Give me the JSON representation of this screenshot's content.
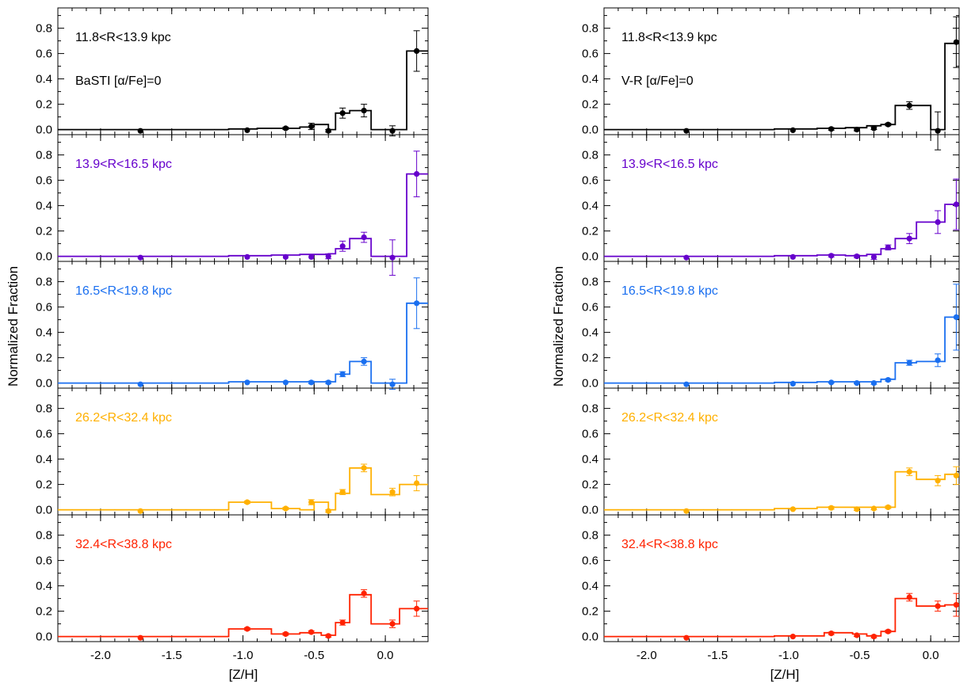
{
  "colors": [
    "#000000",
    "#6600cc",
    "#1a6ff0",
    "#ffb000",
    "#ff2200"
  ],
  "chart_data": [
    {
      "type": "line",
      "title": "",
      "xlabel": "[Z/H]",
      "ylabel": "Normalized Fraction",
      "xlim": [
        -2.3,
        0.3
      ],
      "ylim": [
        -0.04,
        0.96
      ],
      "x_ticks": [
        "-2.0",
        "-1.5",
        "-1.0",
        "-0.5",
        "0.0"
      ],
      "y_ticks": [
        "0.0",
        "0.2",
        "0.4",
        "0.6",
        "0.8"
      ],
      "model_label": "BaSTI [α/Fe]=0",
      "panels": [
        {
          "label": "11.8<R<13.9 kpc",
          "color": "#000000",
          "step": {
            "edges": [
              -2.3,
              -1.1,
              -0.9,
              -0.6,
              -0.5,
              -0.4,
              -0.35,
              -0.25,
              -0.1,
              0.0,
              0.1,
              0.15,
              0.3
            ],
            "values": [
              0.0,
              0.005,
              0.01,
              0.02,
              0.04,
              0.0,
              0.13,
              0.15,
              0.0,
              0.0,
              0.0,
              0.62
            ]
          },
          "points": {
            "x": [
              -1.72,
              -0.97,
              -0.7,
              -0.52,
              -0.4,
              -0.3,
              -0.15,
              0.05,
              0.22
            ],
            "y": [
              -0.01,
              -0.005,
              0.01,
              0.025,
              -0.01,
              0.13,
              0.15,
              -0.01,
              0.62
            ],
            "err": [
              0,
              0,
              0.01,
              0.025,
              0.01,
              0.04,
              0.05,
              0.04,
              0.16
            ]
          }
        },
        {
          "label": "13.9<R<16.5 kpc",
          "color": "#6600cc",
          "step": {
            "edges": [
              -2.3,
              -1.1,
              -0.8,
              -0.6,
              -0.4,
              -0.35,
              -0.25,
              -0.1,
              0.0,
              0.1,
              0.15,
              0.3
            ],
            "values": [
              0.0,
              0.005,
              0.01,
              0.015,
              0.02,
              0.06,
              0.14,
              0.0,
              0.0,
              0.0,
              0.65
            ]
          },
          "points": {
            "x": [
              -1.72,
              -0.97,
              -0.7,
              -0.52,
              -0.4,
              -0.3,
              -0.15,
              0.05,
              0.22
            ],
            "y": [
              -0.01,
              -0.005,
              -0.005,
              -0.005,
              0.0,
              0.08,
              0.15,
              -0.01,
              0.65
            ],
            "err": [
              0,
              0,
              0,
              0,
              0.02,
              0.04,
              0.04,
              0.14,
              0.18
            ]
          }
        },
        {
          "label": "16.5<R<19.8 kpc",
          "color": "#1a6ff0",
          "step": {
            "edges": [
              -2.3,
              -1.1,
              -0.75,
              -0.5,
              -0.35,
              -0.25,
              -0.1,
              0.0,
              0.1,
              0.15,
              0.3
            ],
            "values": [
              0.0,
              0.01,
              0.01,
              0.01,
              0.07,
              0.17,
              0.0,
              0.0,
              0.0,
              0.63
            ]
          },
          "points": {
            "x": [
              -1.72,
              -0.97,
              -0.7,
              -0.52,
              -0.4,
              -0.3,
              -0.15,
              0.05,
              0.22
            ],
            "y": [
              -0.01,
              0.005,
              0.005,
              0.005,
              0.005,
              0.07,
              0.17,
              -0.01,
              0.63
            ],
            "err": [
              0,
              0,
              0,
              0.01,
              0.01,
              0.02,
              0.03,
              0.04,
              0.2
            ]
          }
        },
        {
          "label": "26.2<R<32.4 kpc",
          "color": "#ffb000",
          "step": {
            "edges": [
              -2.3,
              -1.1,
              -0.8,
              -0.6,
              -0.5,
              -0.4,
              -0.35,
              -0.25,
              -0.1,
              0.0,
              0.1,
              0.15,
              0.3
            ],
            "values": [
              0.0,
              0.06,
              0.01,
              0.0,
              0.06,
              0.0,
              0.13,
              0.33,
              0.12,
              0.12,
              0.2,
              0.2
            ]
          },
          "points": {
            "x": [
              -1.72,
              -0.97,
              -0.7,
              -0.52,
              -0.4,
              -0.3,
              -0.15,
              0.05,
              0.22
            ],
            "y": [
              -0.01,
              0.06,
              0.01,
              0.06,
              -0.01,
              0.14,
              0.33,
              0.14,
              0.21
            ],
            "err": [
              0,
              0.01,
              0.01,
              0.02,
              0.01,
              0.02,
              0.03,
              0.03,
              0.06
            ]
          }
        },
        {
          "label": "32.4<R<38.8 kpc",
          "color": "#ff2200",
          "step": {
            "edges": [
              -2.3,
              -1.1,
              -0.8,
              -0.6,
              -0.45,
              -0.35,
              -0.25,
              -0.1,
              0.0,
              0.1,
              0.15,
              0.3
            ],
            "values": [
              0.0,
              0.06,
              0.02,
              0.03,
              0.01,
              0.11,
              0.33,
              0.1,
              0.1,
              0.22,
              0.22
            ]
          },
          "points": {
            "x": [
              -1.72,
              -0.97,
              -0.7,
              -0.52,
              -0.4,
              -0.3,
              -0.15,
              0.05,
              0.22
            ],
            "y": [
              -0.01,
              0.06,
              0.02,
              0.035,
              0.005,
              0.11,
              0.34,
              0.1,
              0.22
            ],
            "err": [
              0,
              0.01,
              0.01,
              0.01,
              0.01,
              0.02,
              0.03,
              0.03,
              0.06
            ]
          }
        }
      ]
    },
    {
      "type": "line",
      "title": "",
      "xlabel": "[Z/H]",
      "ylabel": "Normalized Fraction",
      "xlim": [
        -2.3,
        0.2
      ],
      "ylim": [
        -0.04,
        0.96
      ],
      "x_ticks": [
        "-2.0",
        "-1.5",
        "-1.0",
        "-0.5",
        "0.0"
      ],
      "y_ticks": [
        "0.0",
        "0.2",
        "0.4",
        "0.6",
        "0.8"
      ],
      "model_label": "V-R [α/Fe]=0",
      "panels": [
        {
          "label": "11.8<R<13.9 kpc",
          "color": "#000000",
          "step": {
            "edges": [
              -2.3,
              -1.1,
              -0.8,
              -0.6,
              -0.45,
              -0.35,
              -0.25,
              -0.1,
              0.0,
              0.1,
              0.2
            ],
            "values": [
              0.0,
              0.005,
              0.01,
              0.015,
              0.03,
              0.04,
              0.19,
              0.19,
              0.0,
              0.68
            ]
          },
          "points": {
            "x": [
              -1.72,
              -0.97,
              -0.7,
              -0.52,
              -0.4,
              -0.3,
              -0.15,
              0.05,
              0.18
            ],
            "y": [
              -0.01,
              -0.005,
              0.005,
              0.0,
              0.01,
              0.04,
              0.19,
              -0.01,
              0.69
            ],
            "err": [
              0,
              0,
              0.01,
              0.01,
              0.01,
              0.01,
              0.03,
              0.15,
              0.2
            ]
          }
        },
        {
          "label": "13.9<R<16.5 kpc",
          "color": "#6600cc",
          "step": {
            "edges": [
              -2.3,
              -1.1,
              -0.8,
              -0.6,
              -0.45,
              -0.35,
              -0.25,
              -0.1,
              0.0,
              0.1,
              0.2
            ],
            "values": [
              0.0,
              0.005,
              0.01,
              0.005,
              0.015,
              0.06,
              0.14,
              0.27,
              0.27,
              0.41
            ]
          },
          "points": {
            "x": [
              -1.72,
              -0.97,
              -0.7,
              -0.52,
              -0.4,
              -0.3,
              -0.15,
              0.05,
              0.18
            ],
            "y": [
              -0.01,
              -0.005,
              0.005,
              0.0,
              -0.005,
              0.07,
              0.14,
              0.27,
              0.41
            ],
            "err": [
              0,
              0,
              0.01,
              0.01,
              0.02,
              0.02,
              0.04,
              0.09,
              0.2
            ]
          }
        },
        {
          "label": "16.5<R<19.8 kpc",
          "color": "#1a6ff0",
          "step": {
            "edges": [
              -2.3,
              -1.1,
              -0.8,
              -0.6,
              -0.45,
              -0.35,
              -0.25,
              -0.1,
              0.0,
              0.1,
              0.2
            ],
            "values": [
              0.0,
              0.005,
              0.01,
              0.01,
              0.01,
              0.03,
              0.16,
              0.17,
              0.17,
              0.52
            ]
          },
          "points": {
            "x": [
              -1.72,
              -0.97,
              -0.7,
              -0.52,
              -0.4,
              -0.3,
              -0.15,
              0.05,
              0.18
            ],
            "y": [
              -0.01,
              -0.005,
              0.005,
              0.0,
              0.0,
              0.025,
              0.16,
              0.18,
              0.52
            ],
            "err": [
              0,
              0,
              0.005,
              0.005,
              0.01,
              0.01,
              0.02,
              0.05,
              0.26
            ]
          }
        },
        {
          "label": "26.2<R<32.4 kpc",
          "color": "#ffb000",
          "step": {
            "edges": [
              -2.3,
              -1.1,
              -0.8,
              -0.6,
              -0.45,
              -0.35,
              -0.25,
              -0.1,
              0.0,
              0.1,
              0.2
            ],
            "values": [
              0.0,
              0.01,
              0.02,
              0.02,
              0.02,
              0.02,
              0.3,
              0.24,
              0.24,
              0.28
            ]
          },
          "points": {
            "x": [
              -1.72,
              -0.97,
              -0.7,
              -0.52,
              -0.4,
              -0.3,
              -0.15,
              0.05,
              0.18
            ],
            "y": [
              -0.01,
              0.005,
              0.015,
              0.005,
              0.01,
              0.02,
              0.3,
              0.23,
              0.27
            ],
            "err": [
              0,
              0.005,
              0.01,
              0.01,
              0.01,
              0.01,
              0.03,
              0.04,
              0.07
            ]
          }
        },
        {
          "label": "32.4<R<38.8 kpc",
          "color": "#ff2200",
          "step": {
            "edges": [
              -2.3,
              -1.1,
              -0.9,
              -0.75,
              -0.55,
              -0.45,
              -0.35,
              -0.25,
              -0.1,
              0.0,
              0.1,
              0.2
            ],
            "values": [
              0.0,
              0.005,
              0.005,
              0.03,
              0.02,
              0.005,
              0.04,
              0.3,
              0.24,
              0.24,
              0.25
            ]
          },
          "points": {
            "x": [
              -1.72,
              -0.97,
              -0.7,
              -0.52,
              -0.4,
              -0.3,
              -0.15,
              0.05,
              0.18
            ],
            "y": [
              -0.01,
              0.0,
              0.025,
              0.01,
              0.0,
              0.04,
              0.31,
              0.24,
              0.25
            ],
            "err": [
              0,
              0,
              0.01,
              0.01,
              0.01,
              0.01,
              0.03,
              0.04,
              0.09
            ]
          }
        }
      ]
    }
  ]
}
